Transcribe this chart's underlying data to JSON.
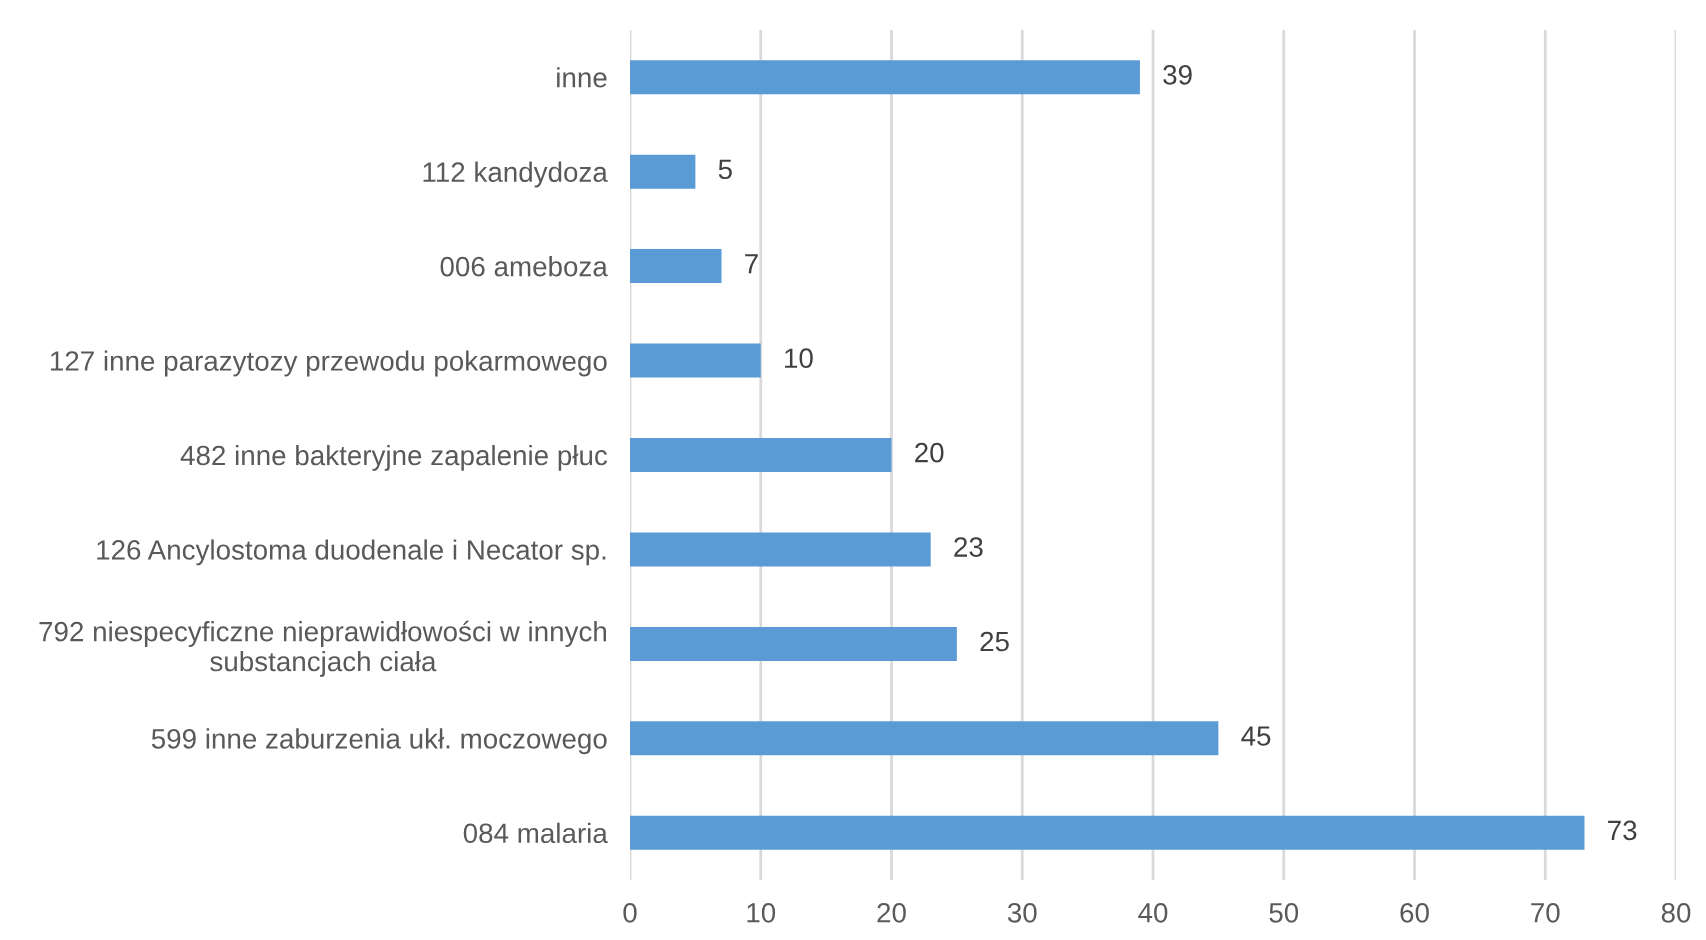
{
  "chart_data": {
    "type": "bar",
    "orientation": "horizontal",
    "categories": [
      "inne",
      "112 kandydoza",
      "006 ameboza",
      "127 inne parazytozy przewodu pokarmowego",
      "482 inne bakteryjne zapalenie płuc",
      "126 Ancylostoma duodenale i Necator sp.",
      "792 niespecyficzne nieprawidłowości w innych\nsubstancjach ciała",
      "599 inne zaburzenia ukł. moczowego",
      "084 malaria"
    ],
    "values": [
      39,
      5,
      7,
      10,
      20,
      23,
      25,
      45,
      73
    ],
    "color": "#5b9bd5",
    "xlim": [
      0,
      80
    ],
    "xticks": [
      0,
      10,
      20,
      30,
      40,
      50,
      60,
      70,
      80
    ],
    "grid": "x",
    "data_labels": true,
    "legend": false
  }
}
